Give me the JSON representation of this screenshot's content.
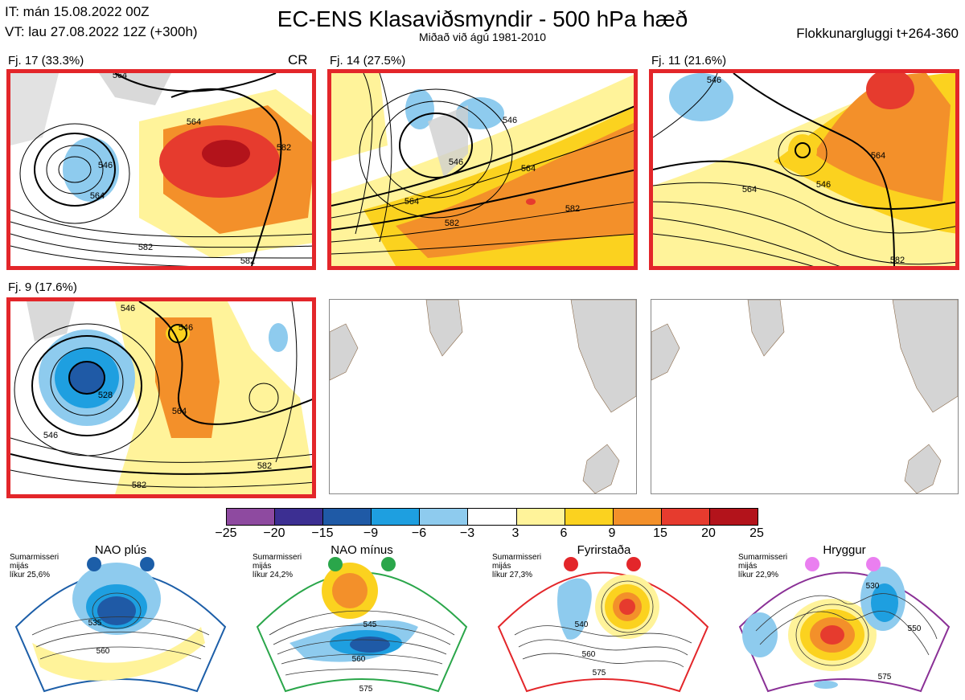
{
  "header": {
    "it_line": "IT: mán 15.08.2022 00Z",
    "vt_line": "VT: lau 27.08.2022 12Z  (+300h)",
    "title": "EC-ENS Klasaviðsmyndir - 500 hPa hæð",
    "subtitle": "Miðað við ágú 1981-2010",
    "window": "Flokkunargluggi t+264-360"
  },
  "panels": [
    {
      "label": "Fj. 17 (33.3%)",
      "badge": "CR",
      "contours": [
        "564",
        "546",
        "564",
        "564",
        "582",
        "582",
        "582"
      ]
    },
    {
      "label": "Fj. 14 (27.5%)",
      "contours": [
        "546",
        "546",
        "564",
        "564",
        "582",
        "582"
      ]
    },
    {
      "label": "Fj. 11 (21.6%)",
      "contours": [
        "546",
        "546",
        "564",
        "564",
        "582"
      ]
    },
    {
      "label": "Fj. 9 (17.6%)",
      "contours": [
        "546",
        "546",
        "528",
        "546",
        "564",
        "582",
        "582"
      ]
    }
  ],
  "colorbar": {
    "colors": [
      "#8e4aa0",
      "#3c2f92",
      "#1f5aa6",
      "#1e9fe0",
      "#8ecbee",
      "#ffffff",
      "#fff39a",
      "#fbd21f",
      "#f3902a",
      "#e63b2e",
      "#b3131b"
    ],
    "ticks": [
      "−25",
      "−20",
      "−15",
      "−9",
      "−6",
      "−3",
      "3",
      "6",
      "9",
      "15",
      "20",
      "25"
    ]
  },
  "climate": [
    {
      "title": "NAO plús",
      "color": "#1c5ea8",
      "note": [
        "Sumarmisseri",
        "mijás",
        "líkur 25,6%"
      ],
      "dot": "#1c5ea8",
      "contours": [
        "535",
        "560"
      ]
    },
    {
      "title": "NAO mínus",
      "color": "#2aa64a",
      "note": [
        "Sumarmisseri",
        "mijás",
        "líkur 24,2%"
      ],
      "dot": "#2aa64a",
      "contours": [
        "545",
        "560",
        "575"
      ]
    },
    {
      "title": "Fyrirstaða",
      "color": "#e3262a",
      "note": [
        "Sumarmisseri",
        "mijás",
        "líkur 27,3%"
      ],
      "dot": "#e3262a",
      "contours": [
        "540",
        "560",
        "575"
      ]
    },
    {
      "title": "Hryggur",
      "color": "#8a3096",
      "note": [
        "Sumarmisseri",
        "mijás",
        "líkur 22,9%"
      ],
      "dot": "#ea7ff0",
      "contours": [
        "530",
        "550",
        "575"
      ]
    }
  ]
}
